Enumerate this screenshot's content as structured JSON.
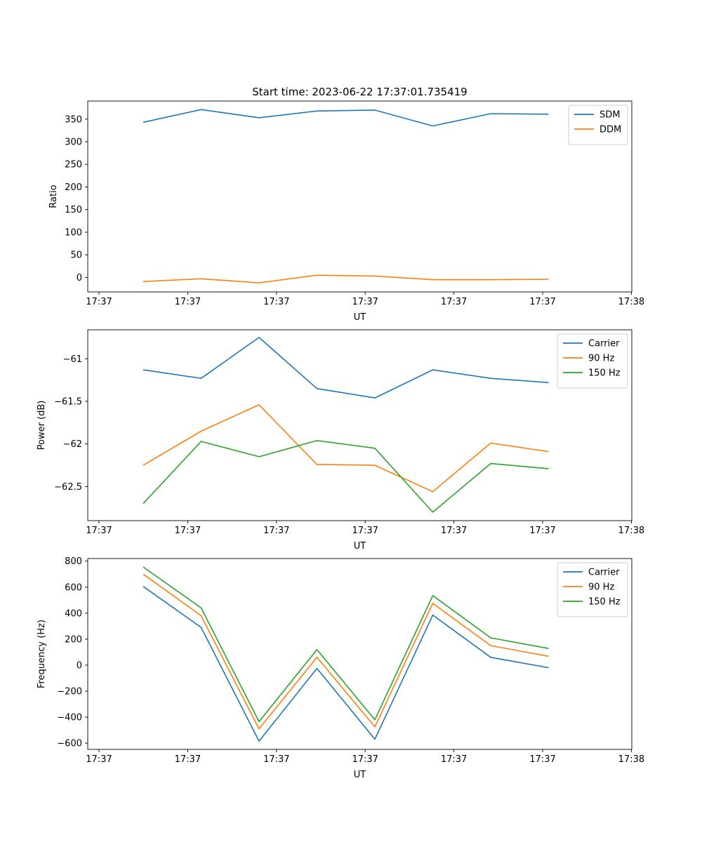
{
  "figure": {
    "title": "Start time: 2023-06-22 17:37:01.735419"
  },
  "chart_data": [
    {
      "type": "line",
      "xlabel": "UT",
      "ylabel": "Ratio",
      "x_tick_labels": [
        "17:37",
        "17:37",
        "17:37",
        "17:37",
        "17:37",
        "17:37",
        "17:38"
      ],
      "ylim": [
        -32,
        390
      ],
      "yticks": [
        0,
        50,
        100,
        150,
        200,
        250,
        300,
        350
      ],
      "grid": false,
      "legend_position": "upper right",
      "series": [
        {
          "name": "SDM",
          "color": "#1f77b4",
          "values": [
            343,
            371,
            353,
            368,
            370,
            335,
            362,
            361
          ]
        },
        {
          "name": "DDM",
          "color": "#ff7f0e",
          "values": [
            -9,
            -3,
            -12,
            5,
            3,
            -5,
            -5,
            -4
          ]
        }
      ]
    },
    {
      "type": "line",
      "xlabel": "UT",
      "ylabel": "Power (dB)",
      "x_tick_labels": [
        "17:37",
        "17:37",
        "17:37",
        "17:37",
        "17:37",
        "17:37",
        "17:38"
      ],
      "ylim": [
        -62.9,
        -60.66
      ],
      "yticks": [
        -61.0,
        -61.5,
        -62.0,
        -62.5
      ],
      "grid": false,
      "legend_position": "upper right",
      "series": [
        {
          "name": "Carrier",
          "color": "#1f77b4",
          "values": [
            -61.13,
            -61.23,
            -60.75,
            -61.35,
            -61.46,
            -61.13,
            -61.23,
            -61.28
          ]
        },
        {
          "name": "90 Hz",
          "color": "#ff7f0e",
          "values": [
            -62.25,
            -61.85,
            -61.54,
            -62.24,
            -62.25,
            -62.56,
            -61.99,
            -62.09
          ]
        },
        {
          "name": "150 Hz",
          "color": "#2ca02c",
          "values": [
            -62.7,
            -61.97,
            -62.15,
            -61.96,
            -62.05,
            -62.8,
            -62.23,
            -62.29
          ]
        }
      ]
    },
    {
      "type": "line",
      "xlabel": "UT",
      "ylabel": "Frequency (Hz)",
      "x_tick_labels": [
        "17:37",
        "17:37",
        "17:37",
        "17:37",
        "17:37",
        "17:37",
        "17:38"
      ],
      "ylim": [
        -648,
        820
      ],
      "yticks": [
        -600,
        -400,
        -200,
        0,
        200,
        400,
        600,
        800
      ],
      "grid": false,
      "legend_position": "upper right",
      "series": [
        {
          "name": "Carrier",
          "color": "#1f77b4",
          "values": [
            605,
            290,
            -585,
            -25,
            -570,
            385,
            60,
            -20
          ]
        },
        {
          "name": "90 Hz",
          "color": "#ff7f0e",
          "values": [
            700,
            380,
            -490,
            60,
            -475,
            475,
            150,
            68
          ]
        },
        {
          "name": "150 Hz",
          "color": "#2ca02c",
          "values": [
            755,
            440,
            -435,
            120,
            -420,
            535,
            210,
            128
          ]
        }
      ]
    }
  ]
}
